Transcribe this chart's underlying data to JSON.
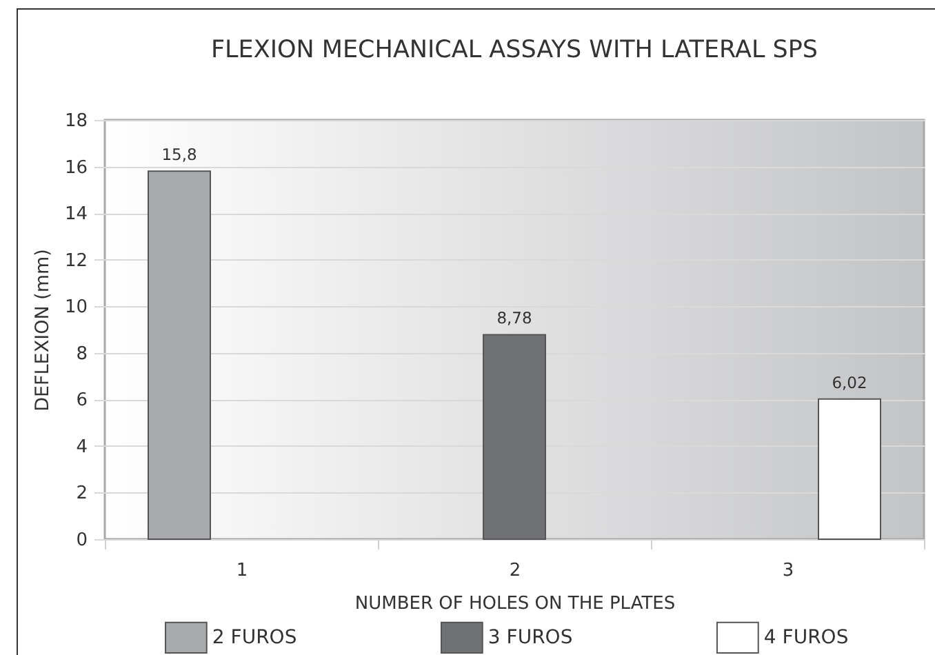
{
  "chart_data": {
    "type": "bar",
    "title": "FLEXION MECHANICAL ASSAYS WITH LATERAL SPS",
    "xlabel": "NUMBER OF HOLES ON THE PLATES",
    "ylabel": "DEFLEXION (mm)",
    "categories": [
      "1",
      "2",
      "3"
    ],
    "series": [
      {
        "name": "2 FUROS",
        "color": "#a9aaad",
        "values": [
          15.8,
          null,
          null
        ],
        "value_labels": [
          "15,8",
          null,
          null
        ]
      },
      {
        "name": "3 FUROS",
        "color": "#707174",
        "values": [
          null,
          8.78,
          null
        ],
        "value_labels": [
          null,
          "8,78",
          null
        ]
      },
      {
        "name": "4 FUROS",
        "color": "#ffffff",
        "values": [
          null,
          null,
          6.02
        ],
        "value_labels": [
          null,
          null,
          "6,02"
        ]
      }
    ],
    "ylim": [
      0,
      18
    ],
    "yticks": [
      0,
      2,
      4,
      6,
      8,
      10,
      12,
      14,
      16,
      18
    ],
    "grid": "y",
    "legend": "bottom"
  }
}
